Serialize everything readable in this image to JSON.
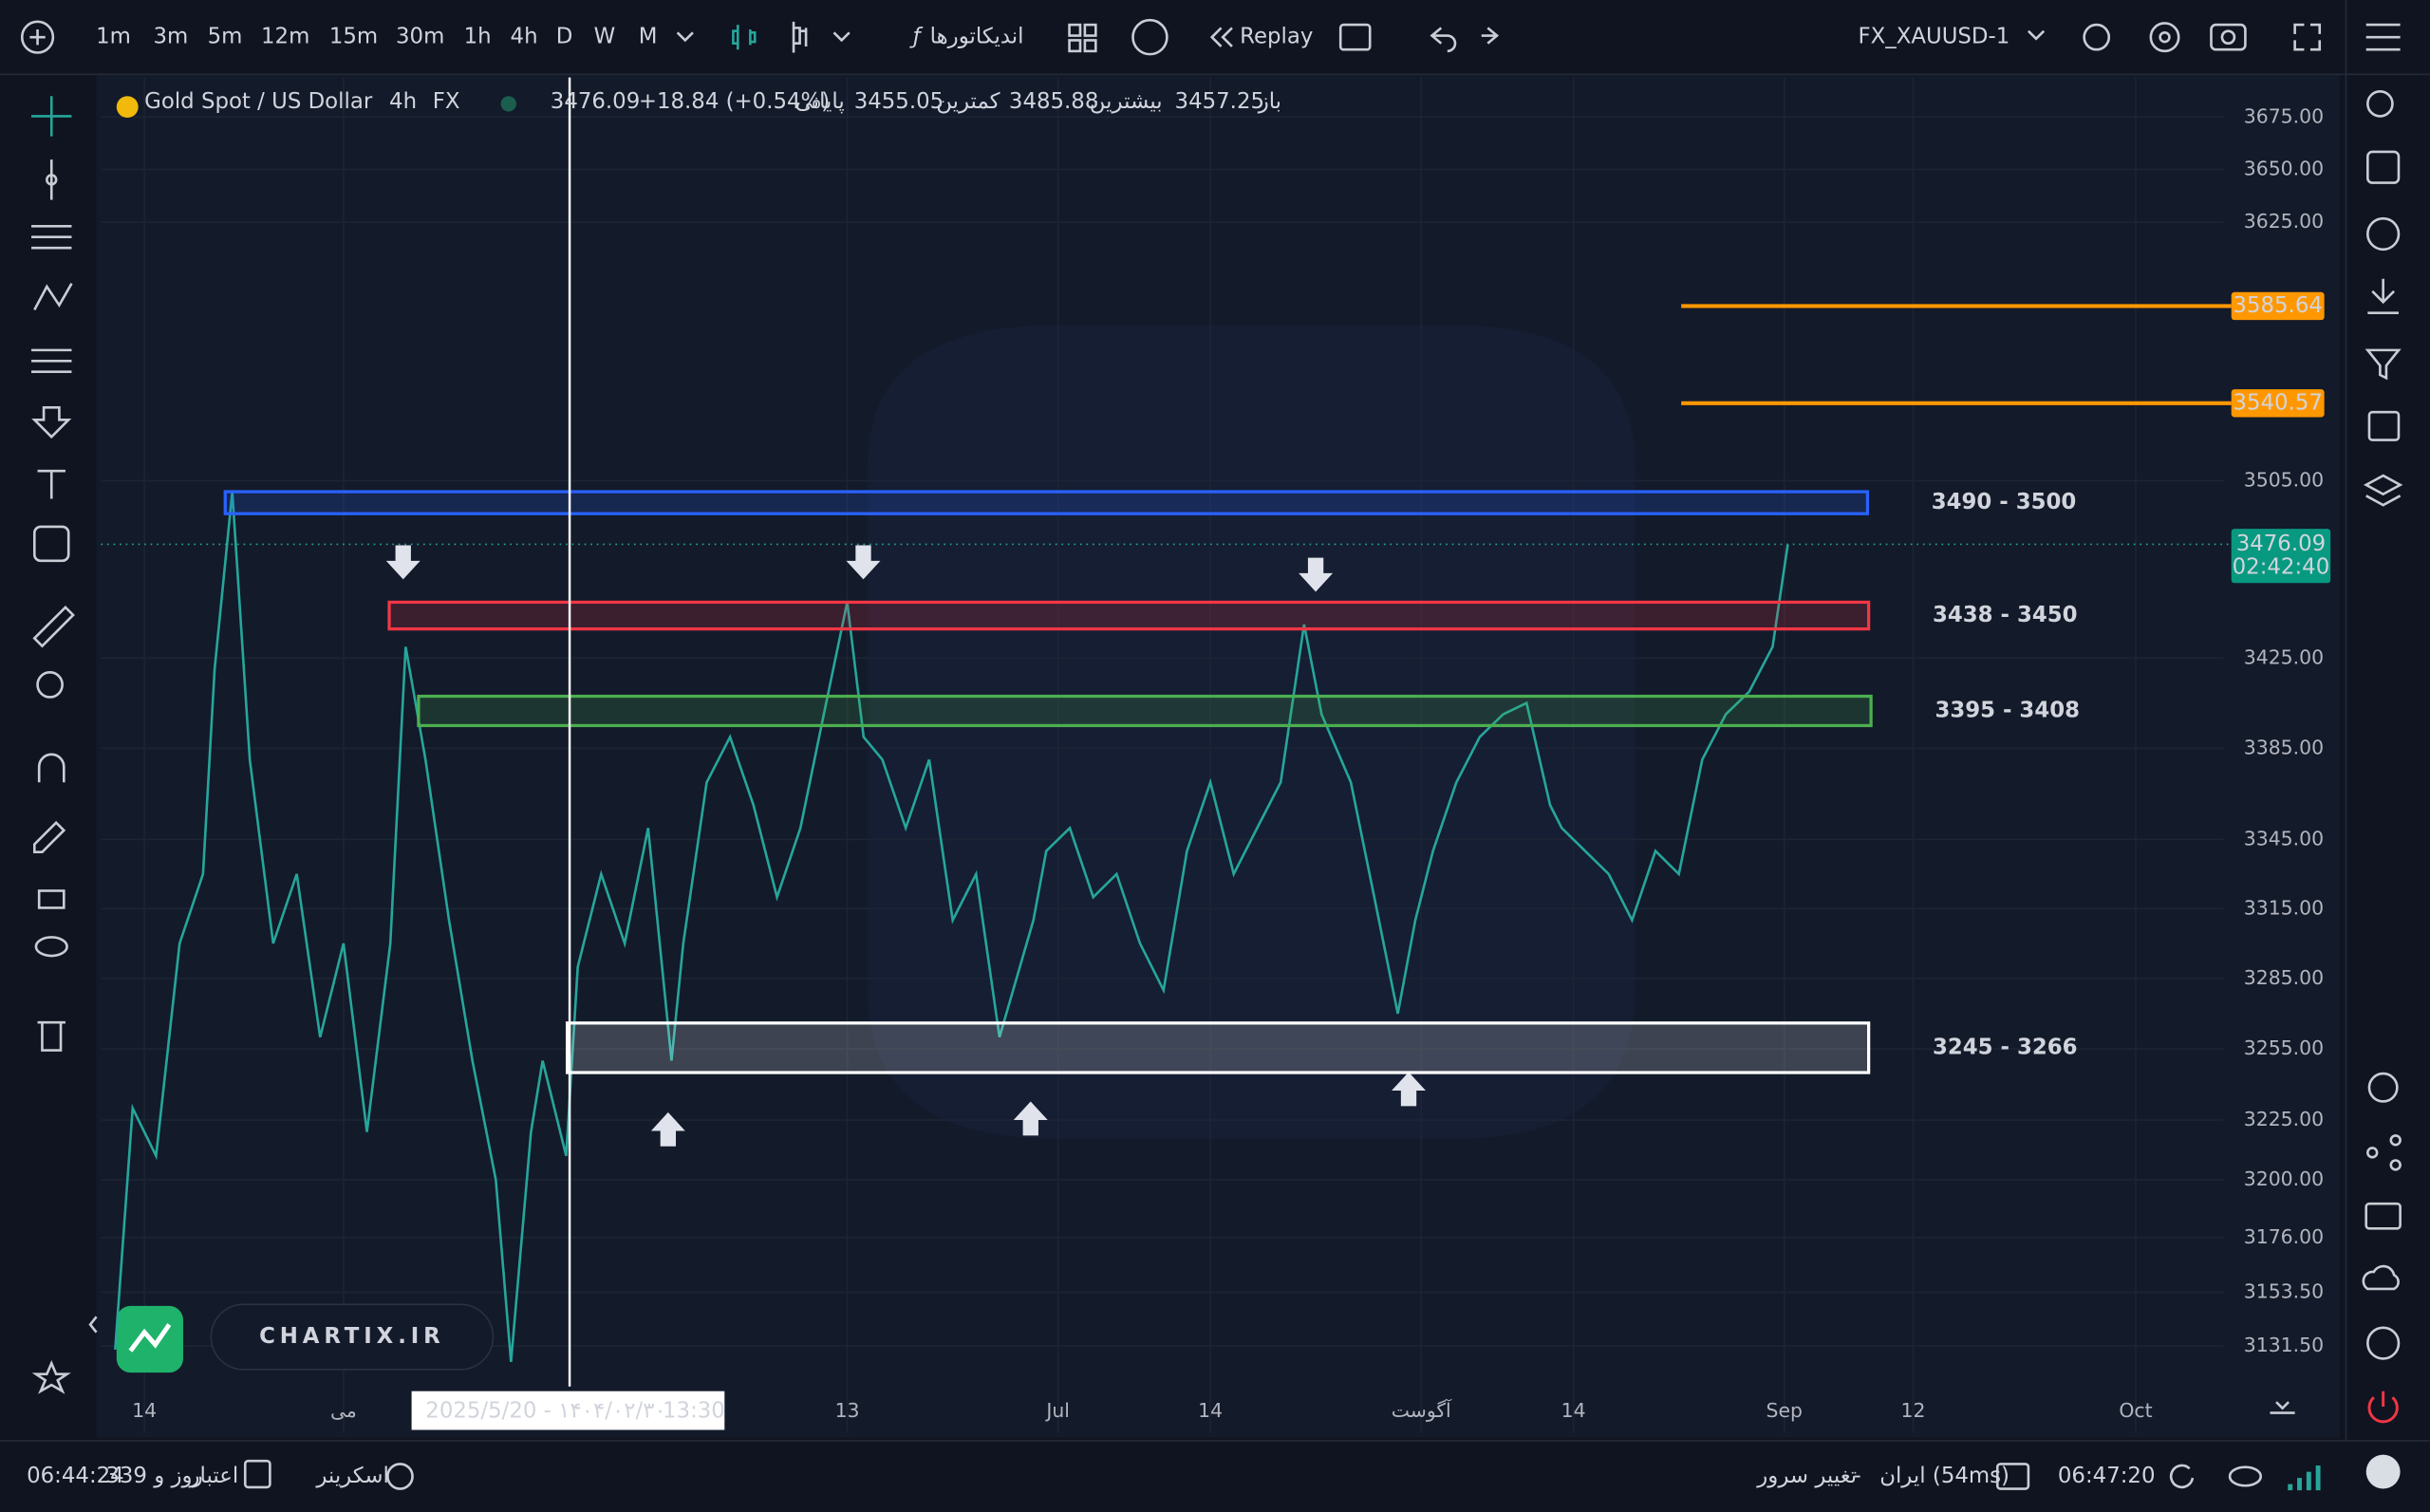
{
  "toolbar": {
    "timeframes": [
      "1m",
      "3m",
      "5m",
      "12m",
      "15m",
      "30m",
      "1h",
      "4h",
      "D",
      "W",
      "M"
    ],
    "active": "4h",
    "indicators": "اندیکاتورها",
    "replay": "Replay",
    "symbol": "FX_XAUUSD-1"
  },
  "legend": {
    "title": "Gold Spot / US Dollar",
    "interval": "4h",
    "exchange": "FX",
    "close": "3476.09",
    "change": "+18.84 (+0.54%)",
    "close_label": "پایانی",
    "low": "3455.05",
    "low_label": "کمترین",
    "high": "3485.88",
    "high_label": "بیشترین",
    "open": "3457.25",
    "open_label": "باز"
  },
  "chart_data": {
    "type": "line",
    "log_scale": true,
    "grid": true,
    "xlim": [
      100.3,
      281.5
    ],
    "xticks": [
      {
        "value": 104,
        "label": "14"
      },
      {
        "value": 121,
        "label": "می"
      },
      {
        "value": 164,
        "label": "13"
      },
      {
        "value": 182,
        "label": "Jul"
      },
      {
        "value": 195,
        "label": "14"
      },
      {
        "value": 213,
        "label": "آگوست"
      },
      {
        "value": 226,
        "label": "14"
      },
      {
        "value": 244,
        "label": "Sep"
      },
      {
        "value": 255,
        "label": "12"
      },
      {
        "value": 274,
        "label": "Oct"
      }
    ],
    "ylim": [
      3115,
      3694
    ],
    "yticks": [
      {
        "value": 3675,
        "label": "3675.00"
      },
      {
        "value": 3650,
        "label": "3650.00"
      },
      {
        "value": 3625,
        "label": "3625.00"
      },
      {
        "value": 3505,
        "label": "3505.00"
      },
      {
        "value": 3425,
        "label": "3425.00"
      },
      {
        "value": 3385,
        "label": "3385.00"
      },
      {
        "value": 3345,
        "label": "3345.00"
      },
      {
        "value": 3315,
        "label": "3315.00"
      },
      {
        "value": 3285,
        "label": "3285.00"
      },
      {
        "value": 3255,
        "label": "3255.00"
      },
      {
        "value": 3225,
        "label": "3225.00"
      },
      {
        "value": 3200,
        "label": "3200.00"
      },
      {
        "value": 3176,
        "label": "3176.00"
      },
      {
        "value": 3153.5,
        "label": "3153.50"
      },
      {
        "value": 3131.5,
        "label": "3131.50"
      }
    ],
    "series": [
      {
        "color": "#26a69a",
        "x": [
          101.5,
          103,
          105,
          107,
          109,
          110,
          111.5,
          113,
          115,
          117,
          119,
          121,
          123,
          125,
          126.3,
          128,
          130,
          132,
          134,
          135.3,
          137,
          138,
          140,
          141,
          143,
          145,
          147,
          149,
          150,
          152,
          154,
          156,
          158,
          160,
          162,
          164,
          165.4,
          167,
          169,
          171,
          173,
          175,
          177,
          179.9,
          181,
          183,
          185,
          187,
          189,
          191,
          193,
          195,
          197,
          199,
          201,
          203,
          204.5,
          207,
          209,
          211,
          212.5,
          214,
          216,
          218,
          220,
          222,
          224,
          225,
          227,
          229,
          231,
          233,
          235,
          237,
          239,
          241,
          243,
          244.3
        ],
        "values": [
          3130,
          3230,
          3210,
          3300,
          3330,
          3420,
          3500,
          3380,
          3300,
          3330,
          3260,
          3300,
          3220,
          3300,
          3430,
          3380,
          3310,
          3250,
          3200,
          3125,
          3220,
          3250,
          3210,
          3290,
          3330,
          3300,
          3350,
          3250,
          3300,
          3370,
          3390,
          3360,
          3320,
          3350,
          3400,
          3450,
          3390,
          3380,
          3350,
          3380,
          3310,
          3330,
          3260,
          3310,
          3340,
          3350,
          3320,
          3330,
          3300,
          3280,
          3340,
          3370,
          3330,
          3350,
          3370,
          3440,
          3400,
          3370,
          3320,
          3270,
          3310,
          3340,
          3370,
          3390,
          3400,
          3405,
          3360,
          3350,
          3340,
          3330,
          3310,
          3340,
          3330,
          3380,
          3400,
          3410,
          3430,
          3476
        ]
      }
    ],
    "zones": [
      {
        "low": 3490,
        "high": 3500,
        "from": 110.9,
        "to": 251.1,
        "label": "3490 - 3500",
        "color": "#2962ff"
      },
      {
        "low": 3438,
        "high": 3450,
        "from": 124.9,
        "to": 251.2,
        "label": "3438 - 3450",
        "color": "#f23645"
      },
      {
        "low": 3395,
        "high": 3408,
        "from": 127.4,
        "to": 251.4,
        "label": "3395 - 3408",
        "color": "#4caf50"
      },
      {
        "low": 3245,
        "high": 3266,
        "from": 140.1,
        "to": 251.2,
        "label": "3245 - 3266",
        "color": "#ffffff"
      }
    ],
    "levels": [
      {
        "value": 3585.64,
        "label": "3585.64",
        "from": 235.2,
        "color": "#ff9800"
      },
      {
        "value": 3540.57,
        "label": "3540.57",
        "from": 235.2,
        "color": "#ff9800"
      }
    ],
    "last_price": {
      "value": 3476.09,
      "label": "3476.09",
      "countdown": "02:42:40"
    },
    "crosshair": {
      "x": 140.3,
      "label": "2025/5/20 - ۱۴۰۴/۰۲/۳۰",
      "time": "13:30"
    }
  },
  "watermark": "CHARTIX.IR",
  "status": {
    "credit_time": "06:44:24",
    "credit_days": "339 روز و",
    "credit_label": "اعتبار",
    "screener": "اسکرینر",
    "change_server": "تغییر سرور",
    "separator": "-",
    "server": "ایران (54ms)",
    "clock": "06:47:20"
  }
}
